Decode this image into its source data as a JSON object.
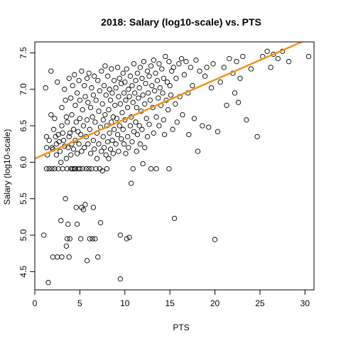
{
  "chart_data": {
    "type": "scatter",
    "title": "2018: Salary (log10-scale) vs. PTS",
    "xlabel": "PTS",
    "ylabel": "Salary (log10-scale)",
    "xlim": [
      0,
      31
    ],
    "ylim": [
      4.25,
      7.65
    ],
    "x_ticks": [
      0,
      5,
      10,
      15,
      20,
      25,
      30
    ],
    "y_ticks": [
      4.5,
      5.0,
      5.5,
      6.0,
      6.5,
      7.0,
      7.5
    ],
    "x_tick_labels": [
      "0",
      "5",
      "10",
      "15",
      "20",
      "25",
      "30"
    ],
    "y_tick_labels": [
      "4.5",
      "5.0",
      "5.5",
      "6.0",
      "6.5",
      "7.0",
      "7.5"
    ],
    "grid": false,
    "legend": "none",
    "fit_line": {
      "intercept": 6.05,
      "slope": 0.054,
      "color": "#f0941c"
    },
    "point_color": "#000000",
    "series": [
      {
        "values": [
          [
            1.0,
            5.0
          ],
          [
            1.2,
            7.02
          ],
          [
            1.3,
            6.35
          ],
          [
            1.3,
            6.2
          ],
          [
            1.3,
            5.91
          ],
          [
            1.4,
            6.1
          ],
          [
            1.5,
            4.35
          ],
          [
            1.6,
            6.3
          ],
          [
            1.6,
            5.91
          ],
          [
            1.8,
            7.25
          ],
          [
            1.8,
            6.65
          ],
          [
            1.9,
            6.2
          ],
          [
            1.9,
            5.91
          ],
          [
            2.0,
            6.18
          ],
          [
            2.0,
            4.7
          ],
          [
            2.1,
            6.45
          ],
          [
            2.2,
            6.6
          ],
          [
            2.2,
            5.91
          ],
          [
            2.3,
            6.35
          ],
          [
            2.4,
            6.25
          ],
          [
            2.4,
            6.1
          ],
          [
            2.5,
            7.1
          ],
          [
            2.5,
            4.7
          ],
          [
            2.6,
            6.38
          ],
          [
            2.6,
            5.91
          ],
          [
            2.7,
            6.28
          ],
          [
            2.8,
            6.15
          ],
          [
            2.9,
            6.0
          ],
          [
            2.9,
            5.2
          ],
          [
            3.0,
            6.75
          ],
          [
            3.0,
            6.5
          ],
          [
            3.0,
            4.7
          ],
          [
            3.1,
            6.4
          ],
          [
            3.1,
            5.91
          ],
          [
            3.2,
            6.3
          ],
          [
            3.3,
            7.0
          ],
          [
            3.3,
            6.22
          ],
          [
            3.4,
            6.85
          ],
          [
            3.4,
            5.5
          ],
          [
            3.5,
            6.62
          ],
          [
            3.5,
            6.05
          ],
          [
            3.5,
            4.85
          ],
          [
            3.6,
            6.55
          ],
          [
            3.6,
            5.91
          ],
          [
            3.6,
            4.95
          ],
          [
            3.7,
            6.2
          ],
          [
            3.7,
            5.15
          ],
          [
            3.8,
            7.15
          ],
          [
            3.8,
            6.35
          ],
          [
            3.8,
            4.7
          ],
          [
            3.9,
            6.4
          ],
          [
            3.9,
            4.95
          ],
          [
            4.0,
            6.88
          ],
          [
            4.0,
            6.1
          ],
          [
            4.0,
            5.91
          ],
          [
            4.1,
            6.65
          ],
          [
            4.1,
            6.25
          ],
          [
            4.2,
            7.05
          ],
          [
            4.2,
            5.91
          ],
          [
            4.3,
            6.45
          ],
          [
            4.3,
            6.18
          ],
          [
            4.4,
            7.2
          ],
          [
            4.4,
            5.91
          ],
          [
            4.5,
            6.78
          ],
          [
            4.5,
            6.3
          ],
          [
            4.5,
            5.91
          ],
          [
            4.6,
            6.55
          ],
          [
            4.6,
            5.38
          ],
          [
            4.7,
            6.95
          ],
          [
            4.7,
            6.12
          ],
          [
            4.7,
            5.15
          ],
          [
            4.8,
            6.42
          ],
          [
            4.8,
            5.91
          ],
          [
            4.9,
            7.12
          ],
          [
            4.9,
            6.25
          ],
          [
            5.0,
            6.85
          ],
          [
            5.0,
            6.6
          ],
          [
            5.0,
            5.91
          ],
          [
            5.1,
            6.38
          ],
          [
            5.1,
            4.95
          ],
          [
            5.2,
            7.25
          ],
          [
            5.2,
            6.15
          ],
          [
            5.2,
            5.38
          ],
          [
            5.3,
            6.72
          ],
          [
            5.3,
            5.91
          ],
          [
            5.4,
            6.5
          ],
          [
            5.4,
            5.35
          ],
          [
            5.5,
            7.05
          ],
          [
            5.5,
            6.2
          ],
          [
            5.6,
            6.9
          ],
          [
            5.6,
            5.42
          ],
          [
            5.7,
            6.35
          ],
          [
            5.7,
            5.91
          ],
          [
            5.8,
            7.15
          ],
          [
            5.8,
            6.58
          ],
          [
            5.8,
            4.65
          ],
          [
            5.9,
            6.82
          ],
          [
            5.9,
            6.25
          ],
          [
            6.0,
            7.22
          ],
          [
            6.0,
            5.91
          ],
          [
            6.1,
            6.45
          ],
          [
            6.1,
            4.95
          ],
          [
            6.2,
            6.75
          ],
          [
            6.2,
            6.12
          ],
          [
            6.3,
            7.02
          ],
          [
            6.3,
            5.91
          ],
          [
            6.4,
            6.62
          ],
          [
            6.4,
            4.95
          ],
          [
            6.5,
            6.92
          ],
          [
            6.5,
            6.3
          ],
          [
            6.5,
            5.38
          ],
          [
            6.6,
            7.18
          ],
          [
            6.6,
            6.18
          ],
          [
            6.7,
            6.55
          ],
          [
            6.7,
            4.95
          ],
          [
            6.8,
            6.85
          ],
          [
            6.8,
            5.91
          ],
          [
            6.9,
            6.4
          ],
          [
            6.9,
            6.05
          ],
          [
            7.0,
            7.12
          ],
          [
            7.0,
            4.7
          ],
          [
            7.1,
            6.7
          ],
          [
            7.1,
            6.25
          ],
          [
            7.2,
            6.98
          ],
          [
            7.2,
            5.91
          ],
          [
            7.3,
            6.48
          ],
          [
            7.3,
            5.17
          ],
          [
            7.4,
            7.25
          ],
          [
            7.4,
            6.15
          ],
          [
            7.5,
            6.8
          ],
          [
            7.5,
            5.88
          ],
          [
            7.6,
            6.58
          ],
          [
            7.6,
            6.35
          ],
          [
            7.7,
            7.05
          ],
          [
            7.7,
            6.2
          ],
          [
            7.8,
            7.32
          ],
          [
            7.8,
            6.65
          ],
          [
            7.9,
            6.92
          ],
          [
            7.9,
            6.1
          ],
          [
            8.0,
            6.5
          ],
          [
            8.0,
            5.91
          ],
          [
            8.1,
            7.18
          ],
          [
            8.1,
            6.28
          ],
          [
            8.2,
            6.72
          ],
          [
            8.2,
            6.05
          ],
          [
            8.3,
            7.0
          ],
          [
            8.3,
            6.4
          ],
          [
            8.4,
            6.85
          ],
          [
            8.4,
            6.18
          ],
          [
            8.5,
            7.28
          ],
          [
            8.5,
            6.55
          ],
          [
            8.6,
            6.95
          ],
          [
            8.6,
            6.3
          ],
          [
            8.7,
            6.62
          ],
          [
            8.7,
            6.12
          ],
          [
            8.8,
            7.12
          ],
          [
            8.8,
            6.45
          ],
          [
            8.9,
            6.78
          ],
          [
            9.0,
            7.02
          ],
          [
            9.0,
            6.25
          ],
          [
            9.1,
            6.6
          ],
          [
            9.2,
            7.3
          ],
          [
            9.2,
            6.38
          ],
          [
            9.3,
            6.9
          ],
          [
            9.3,
            6.15
          ],
          [
            9.4,
            7.15
          ],
          [
            9.4,
            6.5
          ],
          [
            9.5,
            6.8
          ],
          [
            9.5,
            5.0
          ],
          [
            9.5,
            4.4
          ],
          [
            9.6,
            7.08
          ],
          [
            9.6,
            6.32
          ],
          [
            9.7,
            6.68
          ],
          [
            9.8,
            7.22
          ],
          [
            9.8,
            6.45
          ],
          [
            9.9,
            6.95
          ],
          [
            9.9,
            6.25
          ],
          [
            10.0,
            7.1
          ],
          [
            10.0,
            6.58
          ],
          [
            10.1,
            6.85
          ],
          [
            10.1,
            6.12
          ],
          [
            10.2,
            7.28
          ],
          [
            10.2,
            4.95
          ],
          [
            10.3,
            6.75
          ],
          [
            10.3,
            6.35
          ],
          [
            10.4,
            7.0
          ],
          [
            10.4,
            6.2
          ],
          [
            10.5,
            6.9
          ],
          [
            10.5,
            4.97
          ],
          [
            10.6,
            7.18
          ],
          [
            10.6,
            6.5
          ],
          [
            10.7,
            6.62
          ],
          [
            10.7,
            5.71
          ],
          [
            10.8,
            7.05
          ],
          [
            10.8,
            6.28
          ],
          [
            10.9,
            6.82
          ],
          [
            10.9,
            5.91
          ],
          [
            11.0,
            7.35
          ],
          [
            11.0,
            6.42
          ],
          [
            11.1,
            6.95
          ],
          [
            11.2,
            7.12
          ],
          [
            11.2,
            6.55
          ],
          [
            11.3,
            6.75
          ],
          [
            11.3,
            6.15
          ],
          [
            11.4,
            7.22
          ],
          [
            11.4,
            6.38
          ],
          [
            11.5,
            6.88
          ],
          [
            11.6,
            7.02
          ],
          [
            11.6,
            6.5
          ],
          [
            11.7,
            7.3
          ],
          [
            11.7,
            6.25
          ],
          [
            11.8,
            6.7
          ],
          [
            11.9,
            7.15
          ],
          [
            11.9,
            6.45
          ],
          [
            12.0,
            6.92
          ],
          [
            12.0,
            5.98
          ],
          [
            12.1,
            7.38
          ],
          [
            12.2,
            6.8
          ],
          [
            12.2,
            6.2
          ],
          [
            12.3,
            7.08
          ],
          [
            12.4,
            6.6
          ],
          [
            12.5,
            7.25
          ],
          [
            12.5,
            6.35
          ],
          [
            12.6,
            6.95
          ],
          [
            12.7,
            7.18
          ],
          [
            12.7,
            6.52
          ],
          [
            12.8,
            6.85
          ],
          [
            12.9,
            7.32
          ],
          [
            12.9,
            5.91
          ],
          [
            13.0,
            7.05
          ],
          [
            13.1,
            6.75
          ],
          [
            13.2,
            7.4
          ],
          [
            13.2,
            6.4
          ],
          [
            13.3,
            6.98
          ],
          [
            13.4,
            7.22
          ],
          [
            13.5,
            6.62
          ],
          [
            13.5,
            5.91
          ],
          [
            13.6,
            7.12
          ],
          [
            13.7,
            6.88
          ],
          [
            13.8,
            7.35
          ],
          [
            13.8,
            6.5
          ],
          [
            13.9,
            7.02
          ],
          [
            14.0,
            6.78
          ],
          [
            14.1,
            7.28
          ],
          [
            14.2,
            6.95
          ],
          [
            14.3,
            7.15
          ],
          [
            14.3,
            6.58
          ],
          [
            14.4,
            6.38
          ],
          [
            14.5,
            7.45
          ],
          [
            14.6,
            6.85
          ],
          [
            14.7,
            7.1
          ],
          [
            14.8,
            6.72
          ],
          [
            14.9,
            7.38
          ],
          [
            14.9,
            5.91
          ],
          [
            15.0,
            7.05
          ],
          [
            15.1,
            6.92
          ],
          [
            15.2,
            7.25
          ],
          [
            15.3,
            6.45
          ],
          [
            15.4,
            7.3
          ],
          [
            15.5,
            5.23
          ],
          [
            15.6,
            6.8
          ],
          [
            15.7,
            7.15
          ],
          [
            15.8,
            6.55
          ],
          [
            16.0,
            7.35
          ],
          [
            16.1,
            6.9
          ],
          [
            16.3,
            7.42
          ],
          [
            16.4,
            6.65
          ],
          [
            16.6,
            7.2
          ],
          [
            16.8,
            7.38
          ],
          [
            17.0,
            6.95
          ],
          [
            17.1,
            6.38
          ],
          [
            17.3,
            7.3
          ],
          [
            17.5,
            7.05
          ],
          [
            17.7,
            6.6
          ],
          [
            17.9,
            7.4
          ],
          [
            18.1,
            6.15
          ],
          [
            18.3,
            7.25
          ],
          [
            18.6,
            6.5
          ],
          [
            18.9,
            7.18
          ],
          [
            19.1,
            7.3
          ],
          [
            19.3,
            6.48
          ],
          [
            19.6,
            7.02
          ],
          [
            19.8,
            7.35
          ],
          [
            20.0,
            4.94
          ],
          [
            20.3,
            6.42
          ],
          [
            20.6,
            7.1
          ],
          [
            21.0,
            7.3
          ],
          [
            21.3,
            6.78
          ],
          [
            21.6,
            7.42
          ],
          [
            22.0,
            7.22
          ],
          [
            22.2,
            6.95
          ],
          [
            22.4,
            7.38
          ],
          [
            22.6,
            6.82
          ],
          [
            22.8,
            7.15
          ],
          [
            23.1,
            7.45
          ],
          [
            23.5,
            6.58
          ],
          [
            24.0,
            7.28
          ],
          [
            24.7,
            6.35
          ],
          [
            25.3,
            7.45
          ],
          [
            25.8,
            7.52
          ],
          [
            26.2,
            7.3
          ],
          [
            26.5,
            7.48
          ],
          [
            27.0,
            7.42
          ],
          [
            27.5,
            7.52
          ],
          [
            28.2,
            7.38
          ],
          [
            30.4,
            7.45
          ]
        ]
      }
    ]
  }
}
